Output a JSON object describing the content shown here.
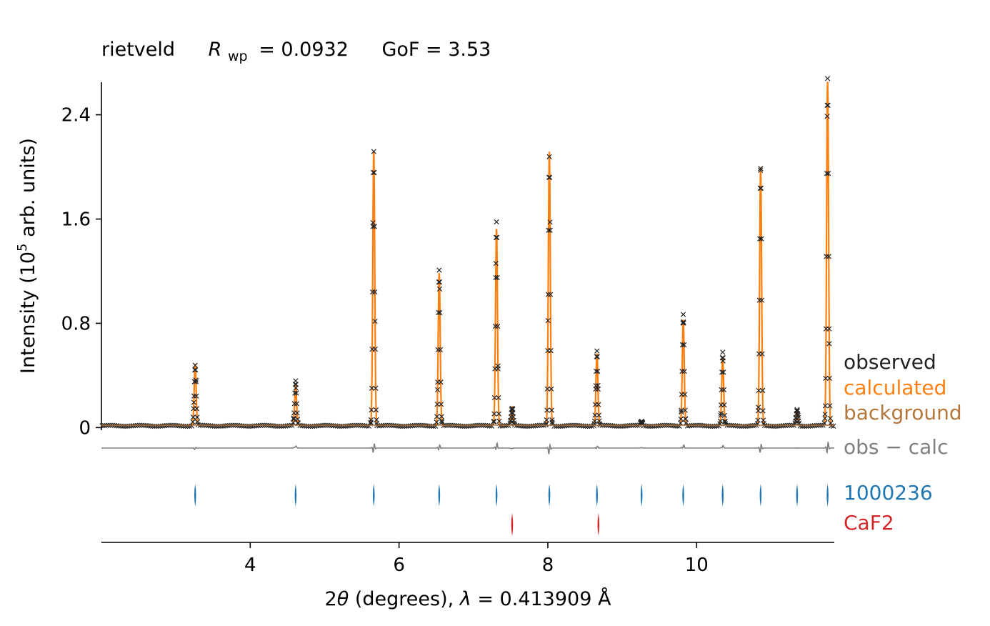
{
  "chart_data": {
    "type": "line",
    "title": {
      "method": "rietveld",
      "rwp_symbol": "R",
      "rwp_subscript": "wp",
      "rwp_value": "= 0.0932",
      "gof": "GoF = 3.53"
    },
    "xlabel": {
      "two": "2",
      "theta": "θ",
      "rest": " (degrees), ",
      "lambda": "λ",
      "value": " = 0.413909 Å"
    },
    "ylabel": {
      "prefix": "Intensity (10",
      "exponent": "5",
      "suffix": " arb. units)"
    },
    "xlim": [
      2.0,
      11.85
    ],
    "ylim": [
      -0.02,
      2.65
    ],
    "x_ticks": [
      {
        "value": 4,
        "label": "4"
      },
      {
        "value": 6,
        "label": "6"
      },
      {
        "value": 8,
        "label": "8"
      },
      {
        "value": 10,
        "label": "10"
      }
    ],
    "y_ticks": [
      {
        "value": 0,
        "label": "0"
      },
      {
        "value": 0.8,
        "label": "0.8"
      },
      {
        "value": 1.6,
        "label": "1.6"
      },
      {
        "value": 2.4,
        "label": "2.4"
      }
    ],
    "background_level": 0.018,
    "peak_width_deg": 0.013,
    "peaks": [
      {
        "x": 3.26,
        "calc": 0.47,
        "obs": 0.46,
        "phase": "1000236"
      },
      {
        "x": 4.61,
        "calc": 0.3,
        "obs": 0.34,
        "phase": "1000236"
      },
      {
        "x": 5.66,
        "calc": 2.1,
        "obs": 2.1,
        "phase": "1000236"
      },
      {
        "x": 6.54,
        "calc": 1.17,
        "obs": 1.19,
        "phase": "1000236"
      },
      {
        "x": 7.31,
        "calc": 1.51,
        "obs": 1.56,
        "phase": "1000236"
      },
      {
        "x": 7.52,
        "calc": 0.14,
        "obs": 0.13,
        "phase": "CaF2"
      },
      {
        "x": 8.02,
        "calc": 2.1,
        "obs": 2.06,
        "phase": "1000236"
      },
      {
        "x": 8.66,
        "calc": 0.55,
        "obs": 0.57,
        "phase": "1000236"
      },
      {
        "x": 9.26,
        "calc": 0.02,
        "obs": 0.03,
        "phase": "1000236"
      },
      {
        "x": 9.82,
        "calc": 0.81,
        "obs": 0.85,
        "phase": "1000236"
      },
      {
        "x": 10.35,
        "calc": 0.52,
        "obs": 0.56,
        "phase": "1000236"
      },
      {
        "x": 10.86,
        "calc": 1.98,
        "obs": 1.97,
        "phase": "1000236"
      },
      {
        "x": 11.35,
        "calc": 0.12,
        "obs": 0.12,
        "phase": "1000236"
      },
      {
        "x": 11.76,
        "calc": 2.64,
        "obs": 2.66,
        "phase": "1000236"
      }
    ],
    "reflections": {
      "1000236": [
        3.26,
        4.61,
        5.66,
        6.54,
        7.31,
        8.02,
        8.66,
        9.26,
        9.82,
        10.35,
        10.86,
        11.35,
        11.76
      ],
      "CaF2": [
        7.52,
        8.68
      ]
    },
    "legend": {
      "placement": "right",
      "entries": [
        {
          "key": "observed",
          "label": "observed",
          "color": "#222222"
        },
        {
          "key": "calculated",
          "label": "calculated",
          "color": "#ff7f0e"
        },
        {
          "key": "background",
          "label": "background",
          "color": "#b5773b"
        },
        {
          "key": "diff",
          "label": "obs − calc",
          "color": "#7f7f7f"
        },
        {
          "key": "phase1",
          "label": "1000236",
          "color": "#1f77b4"
        },
        {
          "key": "phase2",
          "label": "CaF2",
          "color": "#d62728"
        }
      ]
    },
    "colors": {
      "observed": "#222222",
      "calculated": "#ff7f0e",
      "background": "#b5773b",
      "difference": "#7f7f7f",
      "phase1": "#1f77b4",
      "phase2": "#d62728",
      "axis": "#000000"
    }
  }
}
